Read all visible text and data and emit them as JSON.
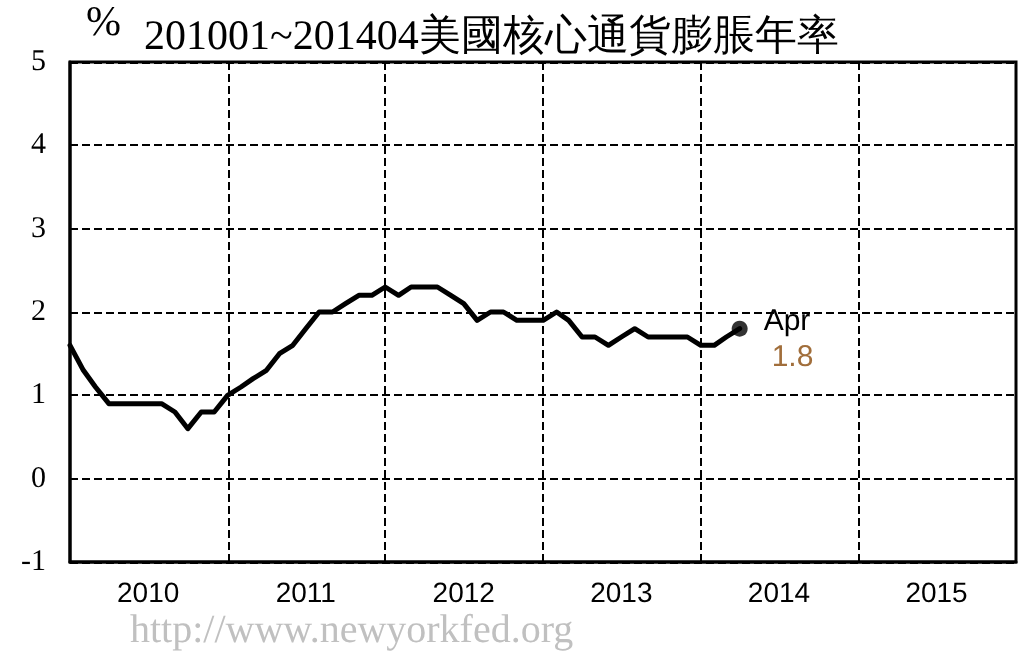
{
  "chart_data": {
    "type": "line",
    "title": "201001~201404美國核心通貨膨脹年率",
    "ylabel": "%",
    "x": [
      "2010-01",
      "2010-02",
      "2010-03",
      "2010-04",
      "2010-05",
      "2010-06",
      "2010-07",
      "2010-08",
      "2010-09",
      "2010-10",
      "2010-11",
      "2010-12",
      "2011-01",
      "2011-02",
      "2011-03",
      "2011-04",
      "2011-05",
      "2011-06",
      "2011-07",
      "2011-08",
      "2011-09",
      "2011-10",
      "2011-11",
      "2011-12",
      "2012-01",
      "2012-02",
      "2012-03",
      "2012-04",
      "2012-05",
      "2012-06",
      "2012-07",
      "2012-08",
      "2012-09",
      "2012-10",
      "2012-11",
      "2012-12",
      "2013-01",
      "2013-02",
      "2013-03",
      "2013-04",
      "2013-05",
      "2013-06",
      "2013-07",
      "2013-08",
      "2013-09",
      "2013-10",
      "2013-11",
      "2013-12",
      "2014-01",
      "2014-02",
      "2014-03",
      "2014-04"
    ],
    "series": [
      {
        "color": "#000000",
        "marker": "none",
        "values": [
          1.6,
          1.3,
          1.1,
          0.9,
          0.9,
          0.9,
          0.9,
          0.9,
          0.8,
          0.6,
          0.8,
          0.8,
          1.0,
          1.1,
          1.2,
          1.3,
          1.5,
          1.6,
          1.8,
          2.0,
          2.0,
          2.1,
          2.2,
          2.2,
          2.3,
          2.2,
          2.3,
          2.3,
          2.3,
          2.2,
          2.1,
          1.9,
          2.0,
          2.0,
          1.9,
          1.9,
          1.9,
          2.0,
          1.9,
          1.7,
          1.7,
          1.6,
          1.7,
          1.8,
          1.7,
          1.7,
          1.7,
          1.7,
          1.6,
          1.6,
          1.7,
          1.8
        ]
      },
      {
        "type": "scatter",
        "color": "#000000",
        "marker": "circle",
        "x": [
          "2014-04"
        ],
        "values": [
          1.8
        ],
        "value_labels": [
          "1.8"
        ]
      }
    ],
    "xlim": [
      "2010-01",
      "2016-01"
    ],
    "xticks": [
      {
        "value": "2010-07",
        "label": "2010"
      },
      {
        "value": "2011-01",
        "label": null
      },
      {
        "value": "2011-07",
        "label": "2011"
      },
      {
        "value": "2012-01",
        "label": null
      },
      {
        "value": "2012-07",
        "label": "2012"
      },
      {
        "value": "2013-01",
        "label": null
      },
      {
        "value": "2013-07",
        "label": "2013"
      },
      {
        "value": "2014-01",
        "label": null
      },
      {
        "value": "2014-07",
        "label": "2014"
      },
      {
        "value": "2015-01",
        "label": null
      },
      {
        "value": "2015-07",
        "label": "2015"
      }
    ],
    "ylim": [
      -1,
      5
    ],
    "yticks": [
      -1,
      0,
      1,
      2,
      3,
      4,
      5
    ],
    "grid": true,
    "line_style": "solid",
    "annotations": [
      {
        "text": "Apr",
        "x": "2014-04",
        "y": 1.8
      },
      "http://www.newyorkfed.org"
    ]
  }
}
